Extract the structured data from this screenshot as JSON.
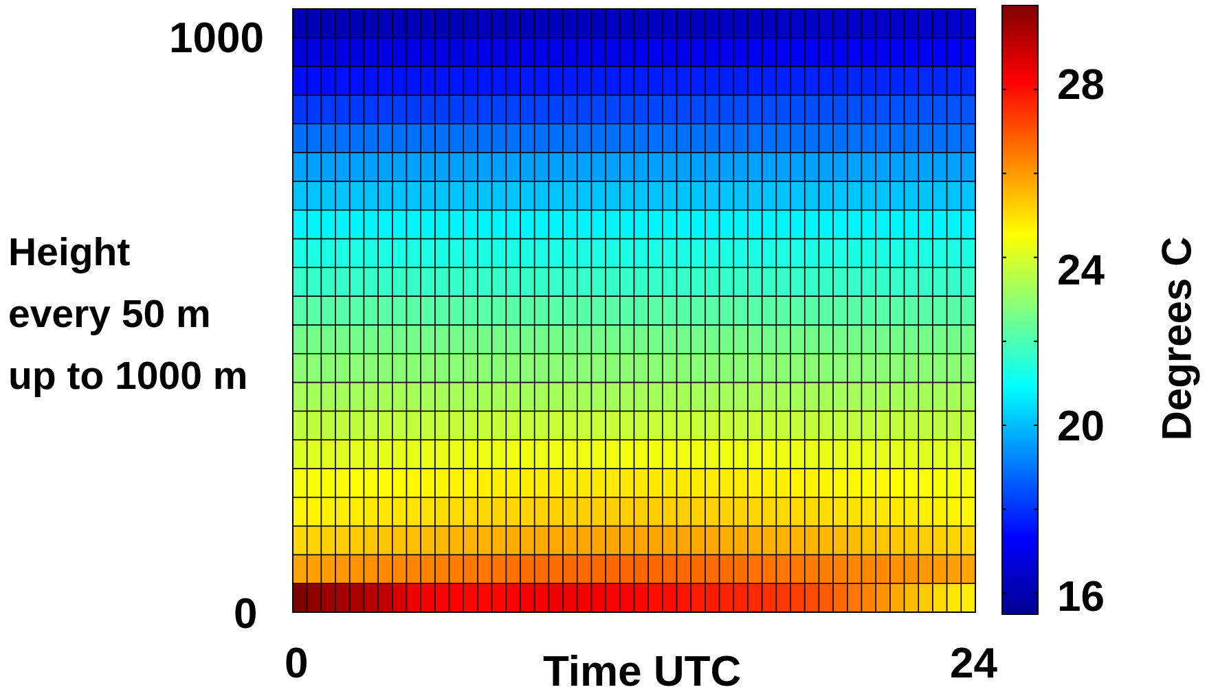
{
  "chart_data": {
    "type": "heatmap",
    "title": "",
    "xlabel": "Time UTC",
    "ylabel_lines": [
      "Height",
      "every 50 m",
      "up to 1000 m"
    ],
    "x_range": [
      0,
      24
    ],
    "x_ticks": [
      "0",
      "24"
    ],
    "y_range": [
      0,
      1000
    ],
    "y_ticks": [
      "0",
      "1000"
    ],
    "colorbar": {
      "label": "Degrees C",
      "range": [
        15.5,
        30
      ],
      "ticks": [
        "16",
        "20",
        "24",
        "28"
      ],
      "colormap": "jet"
    },
    "grid": {
      "columns": 48,
      "time_step_hours": 0.5,
      "height_levels_m": [
        0,
        50,
        100,
        150,
        200,
        250,
        300,
        350,
        400,
        450,
        500,
        550,
        600,
        650,
        700,
        750,
        800,
        850,
        900,
        950,
        1000
      ],
      "approx_profile_degC": [
        29.0,
        26.2,
        25.4,
        24.9,
        24.6,
        24.2,
        23.7,
        23.3,
        22.9,
        22.6,
        22.2,
        21.7,
        21.3,
        20.8,
        20.1,
        19.6,
        18.9,
        18.4,
        17.8,
        17.1,
        16.4
      ],
      "surface_series_degC": [
        30.0,
        29.8,
        29.6,
        29.5,
        29.4,
        29.2,
        29.1,
        28.7,
        28.4,
        28.3,
        28.2,
        28.2,
        28.1,
        28.1,
        28.1,
        28.2,
        28.3,
        28.3,
        28.4,
        28.4,
        28.3,
        28.3,
        28.2,
        28.2,
        28.1,
        28.0,
        28.0,
        27.9,
        27.8,
        27.8,
        27.7,
        27.7,
        27.6,
        27.5,
        27.4,
        27.3,
        27.1,
        26.9,
        26.7,
        26.5,
        26.3,
        26.1,
        25.8,
        25.5,
        25.3,
        25.1,
        24.9,
        24.8
      ]
    }
  }
}
